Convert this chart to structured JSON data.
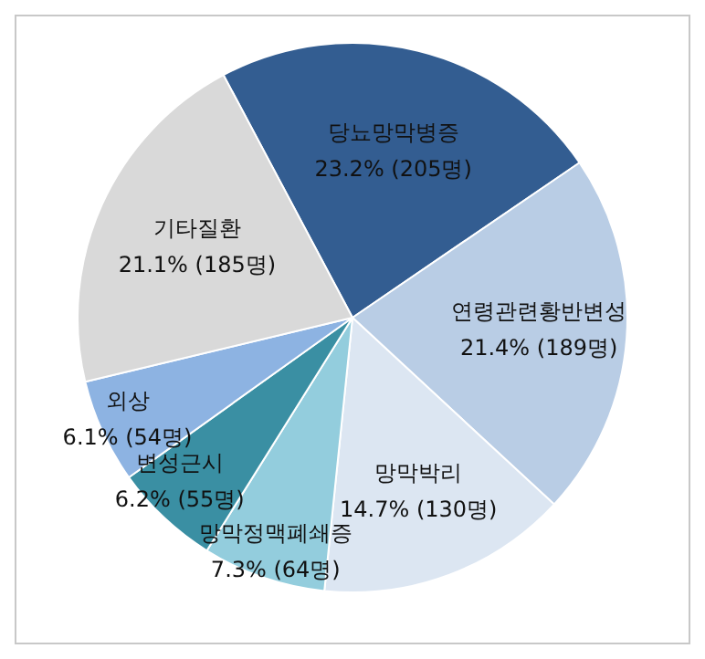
{
  "chart_data": {
    "type": "pie",
    "categories": [
      "당뇨망막병증",
      "연령관련황반변성",
      "망막박리",
      "망막정맥폐쇄증",
      "변성근시",
      "외상",
      "기타질환"
    ],
    "values": [
      205,
      189,
      130,
      64,
      55,
      54,
      185
    ],
    "value_labels": [
      "23.2% (205명)",
      "21.4% (189명)",
      "14.7% (130명)",
      "7.3% (64명)",
      "6.2% (55명)",
      "6.1% (54명)",
      "21.1% (185명)"
    ],
    "colors": [
      "#335d91",
      "#b9cde5",
      "#dce6f2",
      "#93cddd",
      "#3a8fa3",
      "#8db3e2",
      "#d9d9d9"
    ],
    "legend": false
  }
}
